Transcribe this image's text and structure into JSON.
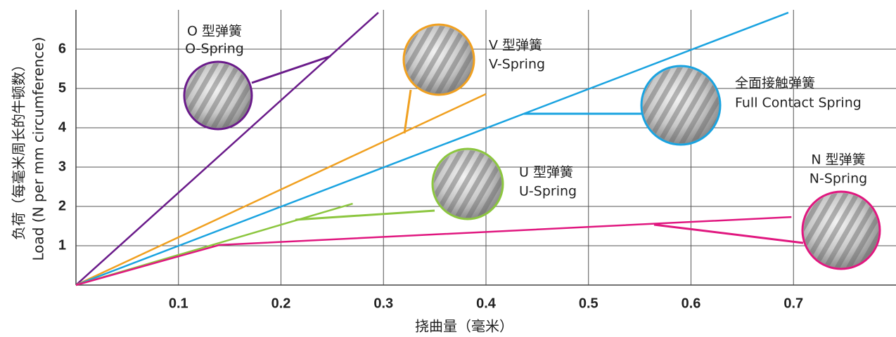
{
  "chart_data": {
    "type": "line",
    "xlabel": "挠曲量（毫米）",
    "ylabel": [
      "负荷（每毫米周长的牛顿数）",
      "Load (N per mm circumference)"
    ],
    "xlim": [
      0,
      0.8
    ],
    "xticks": [
      0.1,
      0.2,
      0.3,
      0.4,
      0.5,
      0.6,
      0.7
    ],
    "ylim": [
      0,
      7
    ],
    "yticks": [
      1,
      2,
      3,
      4,
      5,
      6
    ],
    "grid": true,
    "series": [
      {
        "name": "O-Spring",
        "name_cn": "O 型弹簧",
        "color": "#6a1b8a",
        "x": [
          0,
          0.295
        ],
        "values": [
          0,
          6.93
        ]
      },
      {
        "name": "V-Spring",
        "name_cn": "V 型弹簧",
        "color": "#f0a020",
        "x": [
          0,
          0.4
        ],
        "values": [
          0,
          4.86
        ]
      },
      {
        "name": "Full Contact Spring",
        "name_cn": "全面接触弹簧",
        "color": "#1aa3e0",
        "x": [
          0,
          0.695
        ],
        "values": [
          0,
          6.93
        ]
      },
      {
        "name": "U-Spring",
        "name_cn": "U 型弹簧",
        "color": "#8cc63f",
        "x": [
          0,
          0.27
        ],
        "values": [
          0,
          2.07
        ]
      },
      {
        "name": "N-Spring",
        "name_cn": "N 型弹簧",
        "color": "#e0177f",
        "x": [
          0,
          0.14,
          0.698
        ],
        "values": [
          0,
          1.02,
          1.73
        ]
      }
    ]
  }
}
